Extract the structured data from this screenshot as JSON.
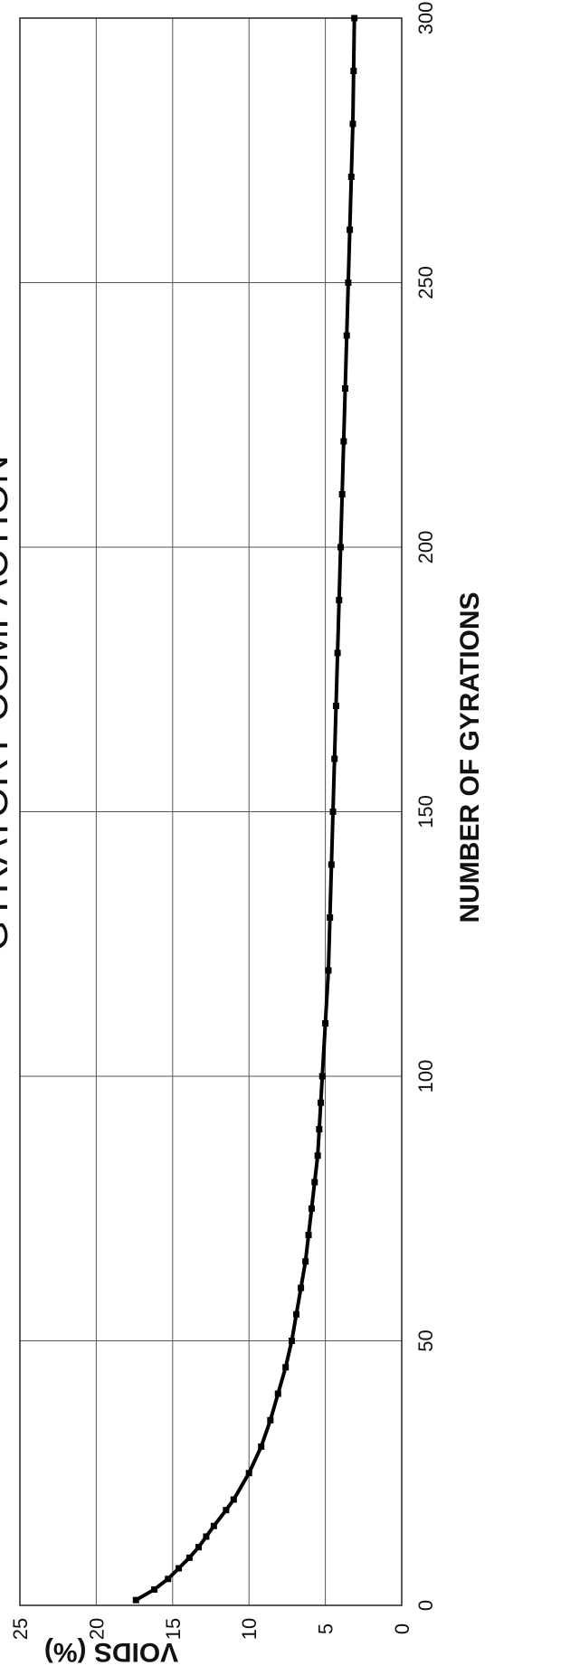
{
  "chart_data": {
    "type": "line",
    "title": "GYRATORY COMPACTION",
    "xlabel": "NUMBER OF GYRATIONS",
    "ylabel": "VOIDS (%)",
    "xlim": [
      0,
      300
    ],
    "ylim": [
      0,
      25
    ],
    "x_ticks": [
      0,
      50,
      100,
      150,
      200,
      250,
      300
    ],
    "y_ticks": [
      0,
      5,
      10,
      15,
      20,
      25
    ],
    "x_tick_labels": [
      "0",
      "50",
      "100",
      "150",
      "200",
      "250",
      "300"
    ],
    "y_tick_labels": [
      "0",
      "5",
      "10",
      "15",
      "20",
      "25"
    ],
    "grid": true,
    "marker": "square",
    "series": [
      {
        "x": [
          1,
          3,
          5,
          7,
          9,
          11,
          13,
          15,
          18,
          20,
          25,
          30,
          35,
          40,
          45,
          50,
          55,
          60,
          65,
          70,
          75,
          80,
          85,
          90,
          95,
          100,
          110,
          120,
          130,
          140,
          150,
          160,
          170,
          180,
          190,
          200,
          210,
          220,
          230,
          240,
          250,
          260,
          270,
          280,
          290,
          300
        ],
        "y": [
          17.4,
          16.2,
          15.3,
          14.6,
          13.9,
          13.3,
          12.8,
          12.3,
          11.5,
          11.0,
          10.0,
          9.2,
          8.6,
          8.1,
          7.6,
          7.2,
          6.9,
          6.6,
          6.3,
          6.1,
          5.9,
          5.7,
          5.5,
          5.4,
          5.3,
          5.2,
          5.0,
          4.8,
          4.7,
          4.6,
          4.5,
          4.4,
          4.3,
          4.2,
          4.1,
          4.0,
          3.9,
          3.8,
          3.7,
          3.6,
          3.5,
          3.4,
          3.3,
          3.2,
          3.15,
          3.1
        ]
      }
    ]
  }
}
